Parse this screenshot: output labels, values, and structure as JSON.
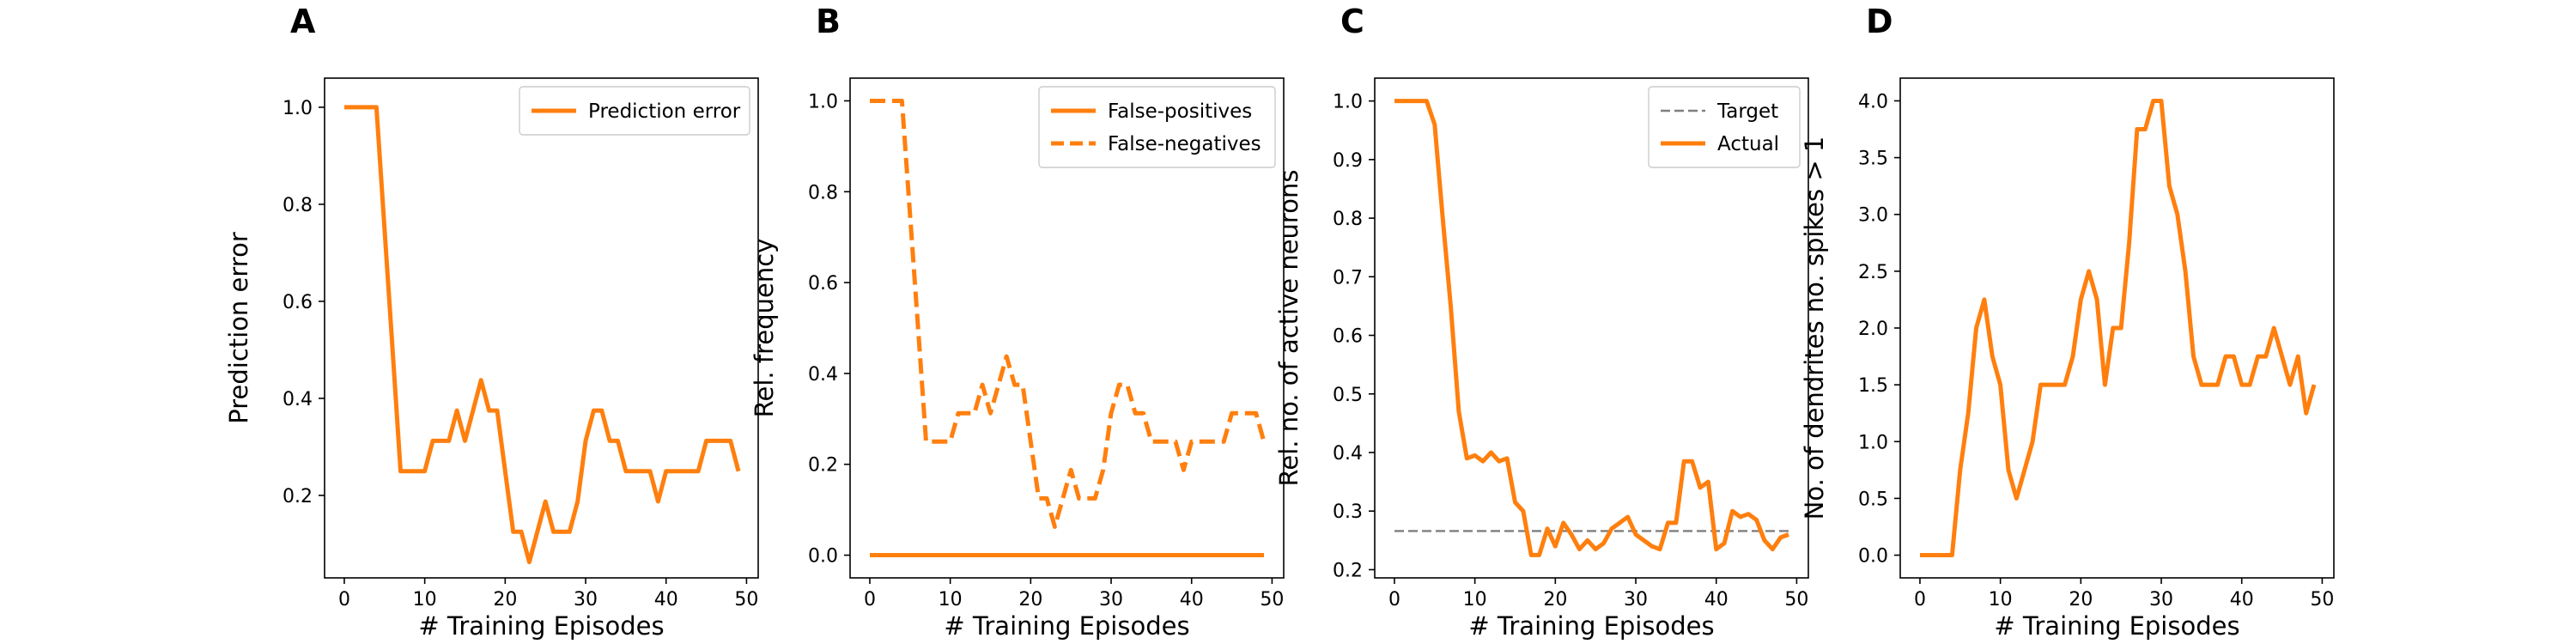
{
  "chart_data": [
    {
      "panel": "A",
      "type": "line",
      "xlabel": "# Training Episodes",
      "ylabel": "Prediction error",
      "xlim": [
        -2.45,
        51.45
      ],
      "ylim": [
        0.03,
        1.06
      ],
      "xticks": [
        0,
        10,
        20,
        30,
        40,
        50
      ],
      "yticks": [
        0.2,
        0.4,
        0.6,
        0.8,
        1.0
      ],
      "yticklabels": [
        "0.2",
        "0.4",
        "0.6",
        "0.8",
        "1.0"
      ],
      "legend": "top-right",
      "series": [
        {
          "name": "Prediction error",
          "color": "#ff7f0e",
          "style": "solid",
          "values": [
            1.0,
            1.0,
            1.0,
            1.0,
            1.0,
            0.75,
            0.5,
            0.25,
            0.25,
            0.25,
            0.25,
            0.3125,
            0.3125,
            0.3125,
            0.375,
            0.3125,
            0.375,
            0.4375,
            0.375,
            0.375,
            0.25,
            0.125,
            0.125,
            0.0625,
            0.125,
            0.1875,
            0.125,
            0.125,
            0.125,
            0.1875,
            0.3125,
            0.375,
            0.375,
            0.3125,
            0.3125,
            0.25,
            0.25,
            0.25,
            0.25,
            0.1875,
            0.25,
            0.25,
            0.25,
            0.25,
            0.25,
            0.3125,
            0.3125,
            0.3125,
            0.3125,
            0.25
          ]
        }
      ]
    },
    {
      "panel": "B",
      "type": "line",
      "xlabel": "# Training Episodes",
      "ylabel": "Rel. frequency",
      "xlim": [
        -2.45,
        51.45
      ],
      "ylim": [
        -0.05,
        1.05
      ],
      "xticks": [
        0,
        10,
        20,
        30,
        40,
        50
      ],
      "yticks": [
        0.0,
        0.2,
        0.4,
        0.6,
        0.8,
        1.0
      ],
      "yticklabels": [
        "0.0",
        "0.2",
        "0.4",
        "0.6",
        "0.8",
        "1.0"
      ],
      "legend": "top-right",
      "series": [
        {
          "name": "False-positives",
          "color": "#ff7f0e",
          "style": "solid",
          "values": [
            0,
            0,
            0,
            0,
            0,
            0,
            0,
            0,
            0,
            0,
            0,
            0,
            0,
            0,
            0,
            0,
            0,
            0,
            0,
            0,
            0,
            0,
            0,
            0,
            0,
            0,
            0,
            0,
            0,
            0,
            0,
            0,
            0,
            0,
            0,
            0,
            0,
            0,
            0,
            0,
            0,
            0,
            0,
            0,
            0,
            0,
            0,
            0,
            0,
            0
          ]
        },
        {
          "name": "False-negatives",
          "color": "#ff7f0e",
          "style": "dashed",
          "values": [
            1.0,
            1.0,
            1.0,
            1.0,
            1.0,
            0.75,
            0.5,
            0.25,
            0.25,
            0.25,
            0.25,
            0.3125,
            0.3125,
            0.3125,
            0.375,
            0.3125,
            0.375,
            0.4375,
            0.375,
            0.375,
            0.25,
            0.125,
            0.125,
            0.0625,
            0.125,
            0.1875,
            0.125,
            0.125,
            0.125,
            0.1875,
            0.3125,
            0.375,
            0.375,
            0.3125,
            0.3125,
            0.25,
            0.25,
            0.25,
            0.25,
            0.1875,
            0.25,
            0.25,
            0.25,
            0.25,
            0.25,
            0.3125,
            0.3125,
            0.3125,
            0.3125,
            0.25
          ]
        }
      ]
    },
    {
      "panel": "C",
      "type": "line",
      "xlabel": "# Training Episodes",
      "ylabel": "Rel. no. of active neurons",
      "xlim": [
        -2.45,
        51.45
      ],
      "ylim": [
        0.186,
        1.039
      ],
      "xticks": [
        0,
        10,
        20,
        30,
        40,
        50
      ],
      "yticks": [
        0.2,
        0.3,
        0.4,
        0.5,
        0.6,
        0.7,
        0.8,
        0.9,
        1.0
      ],
      "yticklabels": [
        "0.2",
        "0.3",
        "0.4",
        "0.5",
        "0.6",
        "0.7",
        "0.8",
        "0.9",
        "1.0"
      ],
      "legend": "top-right",
      "series": [
        {
          "name": "Target",
          "color": "#7f7f7f",
          "style": "dashed",
          "values": [
            0.266,
            0.266,
            0.266,
            0.266,
            0.266,
            0.266,
            0.266,
            0.266,
            0.266,
            0.266,
            0.266,
            0.266,
            0.266,
            0.266,
            0.266,
            0.266,
            0.266,
            0.266,
            0.266,
            0.266,
            0.266,
            0.266,
            0.266,
            0.266,
            0.266,
            0.266,
            0.266,
            0.266,
            0.266,
            0.266,
            0.266,
            0.266,
            0.266,
            0.266,
            0.266,
            0.266,
            0.266,
            0.266,
            0.266,
            0.266,
            0.266,
            0.266,
            0.266,
            0.266,
            0.266,
            0.266,
            0.266,
            0.266,
            0.266,
            0.266
          ]
        },
        {
          "name": "Actual",
          "color": "#ff7f0e",
          "style": "solid",
          "values": [
            1.0,
            1.0,
            1.0,
            1.0,
            1.0,
            0.96,
            0.8,
            0.65,
            0.47,
            0.39,
            0.395,
            0.385,
            0.4,
            0.385,
            0.39,
            0.315,
            0.3,
            0.225,
            0.225,
            0.27,
            0.24,
            0.28,
            0.26,
            0.235,
            0.25,
            0.235,
            0.245,
            0.27,
            0.28,
            0.29,
            0.26,
            0.25,
            0.24,
            0.235,
            0.28,
            0.28,
            0.385,
            0.385,
            0.34,
            0.35,
            0.235,
            0.245,
            0.3,
            0.29,
            0.295,
            0.285,
            0.25,
            0.235,
            0.255,
            0.26
          ]
        }
      ]
    },
    {
      "panel": "D",
      "type": "line",
      "xlabel": "# Training Episodes",
      "ylabel": "No. of dendrites no. spikes > 1",
      "xlim": [
        -2.45,
        51.45
      ],
      "ylim": [
        -0.2,
        4.2
      ],
      "xticks": [
        0,
        10,
        20,
        30,
        40,
        50
      ],
      "yticks": [
        0.0,
        0.5,
        1.0,
        1.5,
        2.0,
        2.5,
        3.0,
        3.5,
        4.0
      ],
      "yticklabels": [
        "0.0",
        "0.5",
        "1.0",
        "1.5",
        "2.0",
        "2.5",
        "3.0",
        "3.5",
        "4.0"
      ],
      "legend": "none",
      "series": [
        {
          "color": "#ff7f0e",
          "style": "solid",
          "values": [
            0,
            0,
            0,
            0,
            0,
            0.75,
            1.25,
            2.0,
            2.25,
            1.75,
            1.5,
            0.75,
            0.5,
            0.75,
            1.0,
            1.5,
            1.5,
            1.5,
            1.5,
            1.75,
            2.25,
            2.5,
            2.25,
            1.5,
            2.0,
            2.0,
            2.75,
            3.75,
            3.75,
            4.0,
            4.0,
            3.25,
            3.0,
            2.5,
            1.75,
            1.5,
            1.5,
            1.5,
            1.75,
            1.75,
            1.5,
            1.5,
            1.75,
            1.75,
            2.0,
            1.75,
            1.5,
            1.75,
            1.25,
            1.5
          ]
        }
      ]
    }
  ]
}
